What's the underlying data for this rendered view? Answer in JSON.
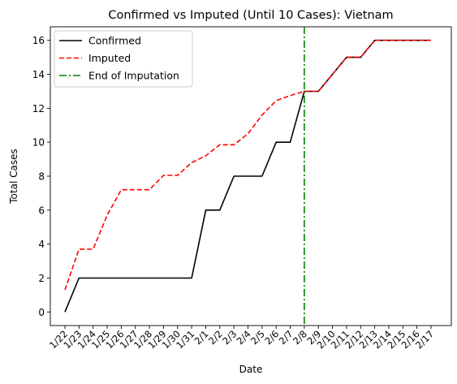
{
  "chart_data": {
    "type": "line",
    "title": "Confirmed vs Imputed (Until 10 Cases): Vietnam",
    "xlabel": "Date",
    "ylabel": "Total Cases",
    "categories": [
      "1/22",
      "1/23",
      "1/24",
      "1/25",
      "1/26",
      "1/27",
      "1/28",
      "1/29",
      "1/30",
      "1/31",
      "2/1",
      "2/2",
      "2/3",
      "2/4",
      "2/5",
      "2/6",
      "2/7",
      "2/8",
      "2/9",
      "2/10",
      "2/11",
      "2/12",
      "2/13",
      "2/14",
      "2/15",
      "2/16",
      "2/17"
    ],
    "ylim": [
      -0.8,
      16.8
    ],
    "yticks": [
      0,
      2,
      4,
      6,
      8,
      10,
      12,
      14,
      16
    ],
    "grid": false,
    "legend_position": "upper-left",
    "series": [
      {
        "name": "Confirmed",
        "color": "#000000",
        "style": "solid",
        "values": [
          0,
          2,
          2,
          2,
          2,
          2,
          2,
          2,
          2,
          2,
          6,
          6,
          8,
          8,
          8,
          10,
          10,
          13,
          13,
          14,
          15,
          15,
          16,
          16,
          16,
          16,
          16
        ]
      },
      {
        "name": "Imputed",
        "color": "#ff0000",
        "style": "dashed",
        "values": [
          1.3,
          3.7,
          3.7,
          5.7,
          7.2,
          7.2,
          7.2,
          8.05,
          8.05,
          8.8,
          9.2,
          9.85,
          9.85,
          10.5,
          11.6,
          12.45,
          12.75,
          13,
          13,
          14,
          15,
          15,
          16,
          16,
          16,
          16,
          16
        ]
      }
    ],
    "vline": {
      "name": "End of Imputation",
      "x": "2/8",
      "color": "#008000",
      "style": "dashdot"
    }
  }
}
